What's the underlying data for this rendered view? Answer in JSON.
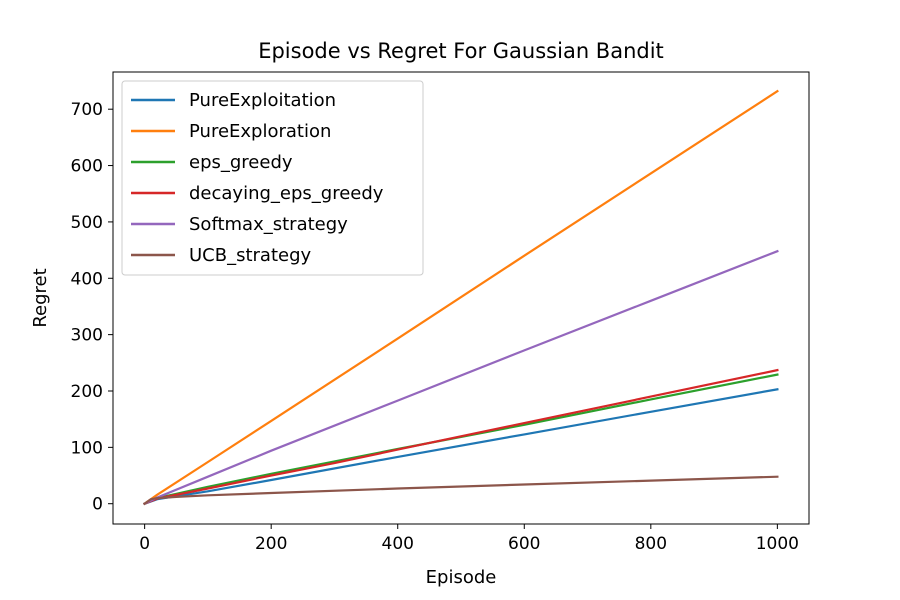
{
  "chart_data": {
    "type": "line",
    "title": "Episode vs Regret For Gaussian Bandit",
    "xlabel": "Episode",
    "ylabel": "Regret",
    "xlim": [
      -50,
      1050
    ],
    "ylim": [
      -36,
      766
    ],
    "xticks": [
      0,
      200,
      400,
      600,
      800,
      1000
    ],
    "yticks": [
      0,
      100,
      200,
      300,
      400,
      500,
      600,
      700
    ],
    "grid": false,
    "legend_position": "upper-left",
    "series": [
      {
        "name": "PureExploitation",
        "color": "#1f77b4",
        "x": [
          0,
          20,
          100,
          200,
          400,
          600,
          800,
          1000
        ],
        "y": [
          0,
          8,
          22,
          42,
          83,
          123,
          163,
          203
        ]
      },
      {
        "name": "PureExploration",
        "color": "#ff7f0e",
        "x": [
          0,
          20,
          100,
          200,
          400,
          600,
          800,
          1000
        ],
        "y": [
          0,
          16,
          74,
          147,
          293,
          440,
          586,
          732
        ]
      },
      {
        "name": "eps_greedy",
        "color": "#2ca02c",
        "x": [
          0,
          20,
          100,
          200,
          300,
          400,
          600,
          800,
          1000
        ],
        "y": [
          0,
          10,
          30,
          53,
          75,
          97,
          140,
          185,
          229
        ]
      },
      {
        "name": "decaying_eps_greedy",
        "color": "#d62728",
        "x": [
          0,
          20,
          100,
          200,
          300,
          400,
          600,
          800,
          1000
        ],
        "y": [
          0,
          9,
          27,
          50,
          72,
          96,
          143,
          190,
          237
        ]
      },
      {
        "name": "Softmax_strategy",
        "color": "#9467bd",
        "x": [
          0,
          20,
          100,
          200,
          400,
          600,
          800,
          1000
        ],
        "y": [
          0,
          11,
          48,
          94,
          183,
          272,
          360,
          448
        ]
      },
      {
        "name": "UCB_strategy",
        "color": "#8c564b",
        "x": [
          0,
          10,
          20,
          50,
          100,
          200,
          400,
          600,
          800,
          1000
        ],
        "y": [
          0,
          8,
          10,
          12,
          15,
          19,
          27,
          34,
          41,
          48
        ]
      }
    ]
  }
}
